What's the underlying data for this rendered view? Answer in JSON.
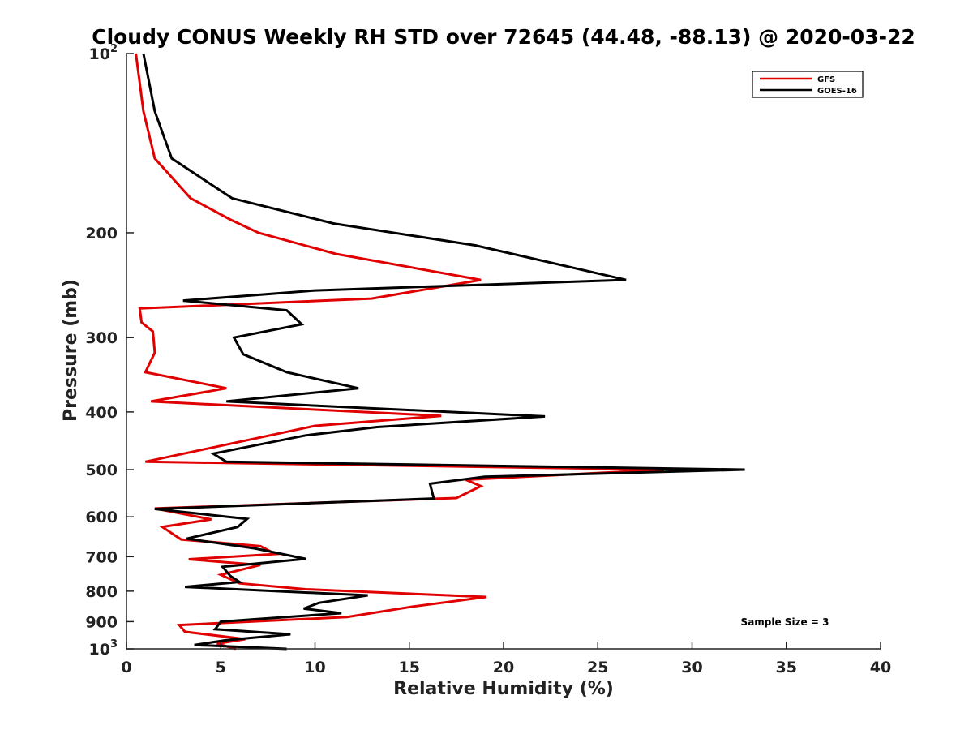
{
  "chart_data": {
    "type": "line",
    "title": "Cloudy CONUS Weekly RH STD over 72645 (44.48, -88.13) @ 2020-03-22",
    "xlabel": "Relative Humidity (%)",
    "ylabel": "Pressure (mb)",
    "xlim": [
      0,
      40
    ],
    "ylim": [
      100,
      1000
    ],
    "y_scale": "log",
    "y_reversed": true,
    "xticks": [
      0,
      5,
      10,
      15,
      20,
      25,
      30,
      35,
      40
    ],
    "yticks": [
      {
        "value": 100,
        "label": "10",
        "sup": "2"
      },
      {
        "value": 200,
        "label": "200",
        "sup": ""
      },
      {
        "value": 300,
        "label": "300",
        "sup": ""
      },
      {
        "value": 400,
        "label": "400",
        "sup": ""
      },
      {
        "value": 500,
        "label": "500",
        "sup": ""
      },
      {
        "value": 600,
        "label": "600",
        "sup": ""
      },
      {
        "value": 700,
        "label": "700",
        "sup": ""
      },
      {
        "value": 800,
        "label": "800",
        "sup": ""
      },
      {
        "value": 900,
        "label": "900",
        "sup": ""
      },
      {
        "value": 1000,
        "label": "10",
        "sup": "3"
      }
    ],
    "legend_position": "top-right",
    "grid": false,
    "annotation": "Sample Size = 3",
    "series": [
      {
        "name": "GFS",
        "color": "#e00000",
        "points": [
          [
            0.5,
            100
          ],
          [
            0.9,
            125
          ],
          [
            1.5,
            150
          ],
          [
            3.4,
            175
          ],
          [
            5.5,
            190
          ],
          [
            7.0,
            200
          ],
          [
            11.1,
            217
          ],
          [
            18.8,
            240
          ],
          [
            13.0,
            258
          ],
          [
            0.7,
            268
          ],
          [
            0.8,
            283
          ],
          [
            1.4,
            293
          ],
          [
            1.5,
            318
          ],
          [
            1.0,
            343
          ],
          [
            5.3,
            365
          ],
          [
            1.3,
            384
          ],
          [
            16.7,
            406
          ],
          [
            10.0,
            422
          ],
          [
            1.0,
            485
          ],
          [
            28.5,
            500
          ],
          [
            18.0,
            520
          ],
          [
            18.8,
            533
          ],
          [
            17.5,
            558
          ],
          [
            1.5,
            581
          ],
          [
            4.5,
            606
          ],
          [
            1.9,
            624
          ],
          [
            2.9,
            655
          ],
          [
            7.1,
            672
          ],
          [
            7.9,
            693
          ],
          [
            3.3,
            707
          ],
          [
            7.1,
            723
          ],
          [
            5.0,
            751
          ],
          [
            6.0,
            776
          ],
          [
            9.5,
            794
          ],
          [
            19.1,
            818
          ],
          [
            15.2,
            849
          ],
          [
            11.7,
            884
          ],
          [
            2.8,
            912
          ],
          [
            3.1,
            936
          ],
          [
            6.3,
            963
          ],
          [
            4.8,
            980
          ],
          [
            5.8,
            1000
          ]
        ]
      },
      {
        "name": "GOES-16",
        "color": "#000000",
        "points": [
          [
            0.9,
            100
          ],
          [
            1.5,
            125
          ],
          [
            2.4,
            150
          ],
          [
            5.6,
            175
          ],
          [
            11.0,
            193
          ],
          [
            18.5,
            210
          ],
          [
            26.5,
            240
          ],
          [
            10.0,
            250
          ],
          [
            3.0,
            260
          ],
          [
            8.5,
            270
          ],
          [
            9.3,
            285
          ],
          [
            5.7,
            300
          ],
          [
            6.2,
            320
          ],
          [
            8.5,
            343
          ],
          [
            12.3,
            365
          ],
          [
            5.3,
            384
          ],
          [
            22.2,
            407
          ],
          [
            13.3,
            424
          ],
          [
            9.5,
            438
          ],
          [
            4.6,
            470
          ],
          [
            5.3,
            485
          ],
          [
            32.8,
            500
          ],
          [
            19.0,
            514
          ],
          [
            16.1,
            528
          ],
          [
            16.3,
            559
          ],
          [
            1.5,
            582
          ],
          [
            6.4,
            605
          ],
          [
            5.9,
            624
          ],
          [
            3.2,
            653
          ],
          [
            6.8,
            678
          ],
          [
            9.5,
            706
          ],
          [
            5.1,
            728
          ],
          [
            5.5,
            754
          ],
          [
            6.0,
            772
          ],
          [
            3.1,
            787
          ],
          [
            12.8,
            813
          ],
          [
            10.2,
            837
          ],
          [
            9.4,
            856
          ],
          [
            11.4,
            871
          ],
          [
            5.0,
            900
          ],
          [
            4.7,
            927
          ],
          [
            8.7,
            945
          ],
          [
            5.3,
            967
          ],
          [
            3.6,
            985
          ],
          [
            8.5,
            1000
          ]
        ]
      }
    ]
  }
}
